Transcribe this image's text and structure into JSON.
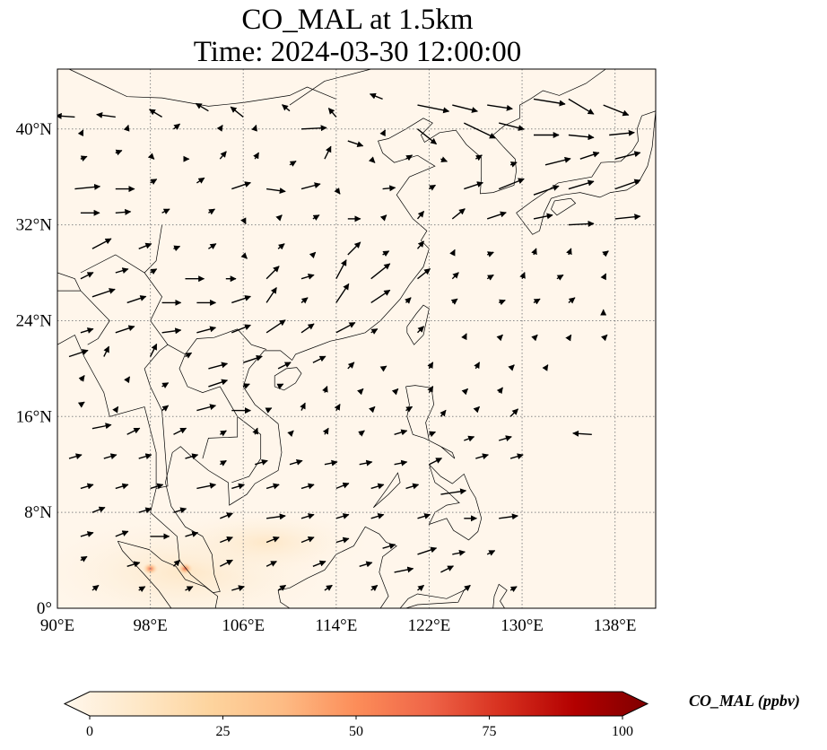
{
  "figure": {
    "title_line1": "CO_MAL at 1.5km",
    "title_line2": "Time: 2024-03-30 12:00:00"
  },
  "map": {
    "projection": "PlateCarree",
    "lon_range": [
      90,
      141.5
    ],
    "lat_range": [
      0,
      45
    ],
    "background_color": "#fff6eb",
    "gridlines": "dotted grey",
    "lon_ticks": [
      "90°E",
      "98°E",
      "106°E",
      "114°E",
      "122°E",
      "130°E",
      "138°E"
    ],
    "lat_ticks": [
      "0°",
      "8°N",
      "16°N",
      "24°N",
      "32°N",
      "40°N"
    ],
    "lon_tick_values": [
      90,
      98,
      106,
      114,
      122,
      130,
      138
    ],
    "lat_tick_values": [
      0,
      8,
      16,
      24,
      32,
      40
    ],
    "hotspots": [
      {
        "lon": 98.0,
        "lat": 3.3,
        "value": 45
      },
      {
        "lon": 101.0,
        "lat": 3.3,
        "value": 55
      }
    ]
  },
  "colorbar": {
    "label": "CO_MAL (ppbv)",
    "ticks": [
      "0",
      "25",
      "50",
      "75",
      "100"
    ],
    "tick_values": [
      0,
      25,
      50,
      75,
      100
    ],
    "range": [
      0,
      100
    ],
    "colormap": "OrRd",
    "extend": "both",
    "color_stops": [
      "#fff7ec",
      "#fee8c8",
      "#fdd49e",
      "#fdbb84",
      "#fc8d59",
      "#ef6548",
      "#d7301f",
      "#b30000",
      "#7f0000"
    ]
  },
  "chart_data": {
    "type": "heatmap",
    "title": "CO_MAL at 1.5km\nTime: 2024-03-30 12:00:00",
    "xlabel": "",
    "ylabel": "",
    "xlim": [
      90,
      141.5
    ],
    "ylim": [
      0,
      45
    ],
    "value_range": [
      0,
      100
    ],
    "field_description": "near-zero everywhere except weak enhancement over Sumatra / Malay Peninsula",
    "wind_vectors": [
      [
        91.5,
        41,
        -1.5,
        0.1
      ],
      [
        95,
        41,
        -1.5,
        0.2
      ],
      [
        99,
        41,
        -1,
        0.6
      ],
      [
        103,
        41.5,
        -1,
        0.6
      ],
      [
        106,
        41,
        -1,
        0.8
      ],
      [
        110,
        41.5,
        -0.6,
        0.5
      ],
      [
        114,
        41,
        -0.6,
        0.7
      ],
      [
        118,
        42.5,
        -1,
        0.4
      ],
      [
        121,
        42,
        2.5,
        -0.5
      ],
      [
        124,
        42,
        2,
        -0.5
      ],
      [
        127,
        42,
        2,
        -0.3
      ],
      [
        131,
        42.5,
        2.5,
        -0.4
      ],
      [
        134,
        42.5,
        2,
        -1.2
      ],
      [
        137,
        42,
        2,
        -0.8
      ],
      [
        92,
        39.5,
        0.2,
        0.4
      ],
      [
        96,
        40,
        0.1,
        0.3
      ],
      [
        100,
        40,
        0.5,
        0.4
      ],
      [
        104,
        40,
        0.2,
        0.3
      ],
      [
        107,
        40,
        0.1,
        0.3
      ],
      [
        111,
        40,
        2,
        0.1
      ],
      [
        115,
        39,
        1.2,
        -0.4
      ],
      [
        118,
        39.5,
        0.2,
        0.4
      ],
      [
        121,
        40,
        1.5,
        -1.2
      ],
      [
        125,
        40.5,
        2.5,
        -1.2
      ],
      [
        128,
        40.5,
        2,
        -0.5
      ],
      [
        131,
        39.5,
        2,
        0
      ],
      [
        134,
        39.5,
        2,
        -0.2
      ],
      [
        137.5,
        39.5,
        2,
        0.2
      ],
      [
        92,
        37.5,
        0.5,
        0.2
      ],
      [
        95,
        38,
        0.5,
        0.2
      ],
      [
        98,
        37.8,
        0.3,
        -0.3
      ],
      [
        101,
        37.5,
        0.3,
        0
      ],
      [
        104,
        37.5,
        0.5,
        0.6
      ],
      [
        107,
        37.5,
        0.3,
        0.5
      ],
      [
        110,
        37,
        0.5,
        0.3
      ],
      [
        113,
        37.5,
        0.5,
        1
      ],
      [
        117,
        37.5,
        0.3,
        -0.3
      ],
      [
        120,
        37.5,
        0.5,
        0.3
      ],
      [
        123,
        37.5,
        0.5,
        -0.2
      ],
      [
        126,
        37.5,
        0.5,
        0.3
      ],
      [
        129,
        37,
        0.5,
        0.2
      ],
      [
        132,
        37,
        2,
        0.5
      ],
      [
        135,
        37.5,
        1.5,
        0.5
      ],
      [
        138,
        37.5,
        2,
        0.5
      ],
      [
        91.5,
        35,
        2,
        0.2
      ],
      [
        95,
        35,
        1.5,
        0
      ],
      [
        98,
        35.5,
        0.5,
        0.3
      ],
      [
        102,
        35.5,
        0.6,
        0.4
      ],
      [
        105,
        35,
        1.5,
        0.5
      ],
      [
        108,
        35,
        1.5,
        -0.2
      ],
      [
        111,
        35,
        1.5,
        0.4
      ],
      [
        114,
        35,
        0.3,
        -0.4
      ],
      [
        118,
        35,
        1,
        0.1
      ],
      [
        122,
        35,
        0.5,
        0.3
      ],
      [
        125,
        35,
        1.5,
        0.5
      ],
      [
        128,
        35,
        2,
        0.8
      ],
      [
        131,
        34.5,
        2,
        0.7
      ],
      [
        134,
        35,
        2,
        0.6
      ],
      [
        138,
        35,
        2,
        0.7
      ],
      [
        92,
        33,
        1.5,
        0
      ],
      [
        95,
        33,
        1.2,
        0.1
      ],
      [
        99,
        33,
        0.6,
        0.3
      ],
      [
        103,
        33,
        0.5,
        0.3
      ],
      [
        106,
        32.5,
        0.2,
        -0.4
      ],
      [
        109,
        32.5,
        0.3,
        0.3
      ],
      [
        112,
        32.5,
        0.5,
        0.3
      ],
      [
        115,
        32.5,
        1,
        0
      ],
      [
        118,
        32.5,
        0.3,
        0.3
      ],
      [
        121,
        32.5,
        0.5,
        0.6
      ],
      [
        124,
        32.5,
        1,
        0.8
      ],
      [
        127,
        32.5,
        1.5,
        0.5
      ],
      [
        131,
        32.5,
        1.5,
        0.3
      ],
      [
        134,
        32,
        2,
        0.1
      ],
      [
        138,
        32.5,
        2,
        0.2
      ],
      [
        93,
        30,
        1.5,
        0.8
      ],
      [
        97,
        30,
        1,
        0.4
      ],
      [
        100,
        30,
        0.5,
        0.2
      ],
      [
        103,
        30,
        0.6,
        0.4
      ],
      [
        106,
        29.5,
        0.3,
        -0.3
      ],
      [
        109,
        30,
        0.5,
        0.4
      ],
      [
        112,
        29.5,
        0.2,
        0.2
      ],
      [
        115,
        29.5,
        1,
        1
      ],
      [
        118,
        29.5,
        0.5,
        0.3
      ],
      [
        121,
        30,
        0.5,
        0.6
      ],
      [
        124,
        29.5,
        0.2,
        0.4
      ],
      [
        127,
        29.5,
        0.5,
        0.2
      ],
      [
        131,
        29.5,
        0.2,
        0.5
      ],
      [
        134,
        29.5,
        0.2,
        0.5
      ],
      [
        137,
        29.5,
        0.4,
        0.3
      ],
      [
        92,
        27.5,
        1,
        0.5
      ],
      [
        95,
        28,
        1,
        0.3
      ],
      [
        98,
        28,
        0.5,
        0.3
      ],
      [
        101,
        27.5,
        1.5,
        0
      ],
      [
        104.5,
        27.5,
        0.8,
        0
      ],
      [
        108,
        27.5,
        1,
        1
      ],
      [
        111,
        27.5,
        1,
        0.3
      ],
      [
        114,
        27.5,
        0.8,
        1.5
      ],
      [
        117,
        27.5,
        1.5,
        1.2
      ],
      [
        121,
        27.5,
        1,
        0.8
      ],
      [
        124,
        27.5,
        0.5,
        0.5
      ],
      [
        127,
        27.5,
        0.5,
        0.3
      ],
      [
        130,
        27.5,
        0.2,
        0.5
      ],
      [
        133,
        27.5,
        0.5,
        0.3
      ],
      [
        137,
        27.5,
        0.2,
        0.4
      ],
      [
        93,
        26,
        1.8,
        0.6
      ],
      [
        96,
        25.5,
        1.5,
        0.5
      ],
      [
        99,
        25.5,
        1.5,
        0
      ],
      [
        102,
        25.5,
        1.5,
        0
      ],
      [
        105,
        25.5,
        1.5,
        0.5
      ],
      [
        108,
        25.5,
        0.8,
        1.2
      ],
      [
        111,
        25.5,
        0.5,
        0.4
      ],
      [
        114,
        25.5,
        1,
        1.5
      ],
      [
        117,
        25.5,
        1.5,
        1
      ],
      [
        120,
        25.5,
        0.4,
        0.4
      ],
      [
        124,
        25.5,
        0.4,
        0.3
      ],
      [
        128,
        25.5,
        0.5,
        0.2
      ],
      [
        131,
        25.5,
        0.5,
        0.3
      ],
      [
        134,
        25.5,
        0.5,
        0.4
      ],
      [
        137,
        24.5,
        0,
        0.4
      ],
      [
        92,
        23,
        1,
        0.3
      ],
      [
        95,
        23,
        1.5,
        0.5
      ],
      [
        99,
        23,
        1.5,
        0.2
      ],
      [
        102,
        23,
        1.5,
        0.4
      ],
      [
        105,
        23,
        1.5,
        0.6
      ],
      [
        108,
        23,
        1.5,
        1
      ],
      [
        111,
        23,
        1,
        0.7
      ],
      [
        114,
        23,
        1.5,
        0.8
      ],
      [
        117,
        23,
        0.5,
        0.3
      ],
      [
        121,
        23,
        0.5,
        0.5
      ],
      [
        125,
        22.5,
        0.2,
        0.4
      ],
      [
        128,
        22.5,
        0.3,
        0.3
      ],
      [
        131,
        22.5,
        0.3,
        0.3
      ],
      [
        134,
        22.5,
        0.2,
        0.3
      ],
      [
        137,
        22.5,
        0.3,
        0.3
      ],
      [
        91,
        21,
        1.5,
        0.5
      ],
      [
        94,
        21,
        0.4,
        0.8
      ],
      [
        98,
        21,
        0.5,
        1
      ],
      [
        101,
        21,
        0.5,
        0.3
      ],
      [
        103,
        20,
        1.5,
        0.4
      ],
      [
        106,
        20.5,
        1.5,
        0.5
      ],
      [
        109,
        20,
        1,
        0.5
      ],
      [
        112,
        20.5,
        1,
        0.5
      ],
      [
        115,
        20,
        0.5,
        0.5
      ],
      [
        118,
        20,
        0.3,
        0.2
      ],
      [
        122,
        20,
        0.3,
        0.5
      ],
      [
        126,
        20,
        0.3,
        0.5
      ],
      [
        129,
        20,
        0.3,
        0.3
      ],
      [
        132,
        20,
        0.2,
        0.3
      ],
      [
        92,
        19,
        0.3,
        0.4
      ],
      [
        96,
        19,
        0.2,
        0.3
      ],
      [
        99,
        18.5,
        0.5,
        0.3
      ],
      [
        103,
        18.5,
        1.5,
        0.5
      ],
      [
        106,
        18.5,
        0.5,
        0.2
      ],
      [
        109,
        18.5,
        0.4,
        0.2
      ],
      [
        113,
        18,
        0.2,
        0.5
      ],
      [
        116,
        18,
        0.3,
        0.3
      ],
      [
        119,
        18,
        0.3,
        0.3
      ],
      [
        122,
        18,
        0.3,
        0.5
      ],
      [
        125,
        18,
        0.3,
        0.3
      ],
      [
        128,
        18,
        0.3,
        0.4
      ],
      [
        92,
        17,
        0.3,
        0.2
      ],
      [
        95,
        16.5,
        0.2,
        0.3
      ],
      [
        99,
        16.5,
        0.5,
        0.4
      ],
      [
        102,
        16.5,
        1.5,
        0.4
      ],
      [
        105,
        16.5,
        1.5,
        0
      ],
      [
        108,
        16.5,
        0.4,
        0.2
      ],
      [
        111,
        16.5,
        0.3,
        0.6
      ],
      [
        114,
        16.5,
        0.3,
        0.5
      ],
      [
        117,
        16.5,
        0.3,
        0.3
      ],
      [
        120,
        16.5,
        0.5,
        0.3
      ],
      [
        123,
        16,
        0.4,
        0.5
      ],
      [
        126,
        16.5,
        0.3,
        0.3
      ],
      [
        129,
        16,
        0.6,
        0.6
      ],
      [
        136,
        14.5,
        -1.5,
        0.1
      ],
      [
        93,
        15,
        1.5,
        0.3
      ],
      [
        96,
        14.5,
        1,
        0.5
      ],
      [
        100,
        14.5,
        1,
        0.5
      ],
      [
        104,
        14.5,
        0.5,
        0.3
      ],
      [
        107,
        14.5,
        0.2,
        0.5
      ],
      [
        110,
        14.5,
        0.3,
        0.3
      ],
      [
        113,
        14.5,
        0.3,
        0.5
      ],
      [
        116,
        14.5,
        0.4,
        0.3
      ],
      [
        119,
        14.5,
        1,
        0.3
      ],
      [
        122,
        14.5,
        0.5,
        0.2
      ],
      [
        125,
        14,
        0.8,
        0.3
      ],
      [
        128,
        14,
        1,
        0.3
      ],
      [
        91,
        12.5,
        1,
        0.3
      ],
      [
        94,
        12.5,
        1,
        0.3
      ],
      [
        97,
        12.5,
        1,
        0.3
      ],
      [
        101,
        12.5,
        1,
        0.3
      ],
      [
        104,
        12,
        0.5,
        0.3
      ],
      [
        107,
        12,
        1,
        0.3
      ],
      [
        110,
        12,
        1,
        0.3
      ],
      [
        113,
        12,
        1,
        0.2
      ],
      [
        116,
        12,
        1,
        0.2
      ],
      [
        119,
        12,
        1,
        0.2
      ],
      [
        122,
        12,
        1,
        0.5
      ],
      [
        126,
        12.5,
        1,
        0.3
      ],
      [
        129,
        12.5,
        1,
        0.3
      ],
      [
        92,
        10,
        1,
        0.3
      ],
      [
        95,
        10,
        1,
        0.3
      ],
      [
        98,
        10,
        1,
        0.3
      ],
      [
        102,
        10,
        1.5,
        0.3
      ],
      [
        105,
        10,
        1,
        0.3
      ],
      [
        108,
        10,
        1,
        0.3
      ],
      [
        111,
        10,
        1,
        0.3
      ],
      [
        114,
        10,
        1,
        0.4
      ],
      [
        117,
        10,
        1,
        0.3
      ],
      [
        120,
        10,
        1,
        0.3
      ],
      [
        123,
        9.5,
        2,
        0.3
      ],
      [
        93,
        8,
        1,
        0.4
      ],
      [
        97,
        8,
        1,
        0.3
      ],
      [
        100,
        8,
        1,
        0.3
      ],
      [
        104,
        7.5,
        1,
        0.4
      ],
      [
        108,
        7.5,
        1.5,
        0.2
      ],
      [
        111,
        7.5,
        1,
        0.3
      ],
      [
        114,
        7.5,
        1,
        0.3
      ],
      [
        117,
        7.5,
        1,
        0.3
      ],
      [
        121,
        7.5,
        1,
        0.3
      ],
      [
        125,
        7.5,
        1,
        0
      ],
      [
        128,
        7.5,
        1.5,
        0.2
      ],
      [
        92,
        6,
        1,
        0.3
      ],
      [
        95,
        6,
        1,
        0.4
      ],
      [
        98,
        6,
        1.5,
        0
      ],
      [
        101,
        6,
        1,
        0.3
      ],
      [
        104,
        5.5,
        1,
        0.4
      ],
      [
        108,
        5.5,
        1,
        0.4
      ],
      [
        111,
        5.5,
        1,
        0.4
      ],
      [
        114,
        5.5,
        1,
        0.3
      ],
      [
        118,
        5,
        1,
        0.3
      ],
      [
        121,
        4.5,
        1.5,
        0.5
      ],
      [
        124,
        4.5,
        1,
        0.2
      ],
      [
        127,
        4.5,
        0.6,
        0.3
      ],
      [
        92,
        4,
        0.5,
        0.3
      ],
      [
        96,
        3.5,
        1,
        0.3
      ],
      [
        100,
        3.5,
        0.5,
        0.5
      ],
      [
        104,
        3.5,
        1,
        0.5
      ],
      [
        108,
        3.5,
        0.8,
        0.4
      ],
      [
        112,
        3.5,
        1,
        0.4
      ],
      [
        116,
        3.5,
        1,
        0.3
      ],
      [
        119,
        3,
        1.5,
        0.3
      ],
      [
        123,
        3,
        1,
        0.5
      ],
      [
        93,
        1.5,
        0.5,
        0.4
      ],
      [
        97,
        1.5,
        0.5,
        0.3
      ],
      [
        101,
        1.5,
        0.6,
        0.3
      ],
      [
        105,
        1.5,
        1,
        0.3
      ],
      [
        109,
        1.5,
        0.6,
        0.4
      ],
      [
        113,
        1.5,
        0.6,
        0.4
      ],
      [
        117,
        1.5,
        0.5,
        0.4
      ],
      [
        121,
        1.5,
        0.5,
        0.4
      ],
      [
        125,
        1.5,
        0.5,
        0.4
      ],
      [
        129,
        1.5,
        0.5,
        0.3
      ]
    ]
  }
}
